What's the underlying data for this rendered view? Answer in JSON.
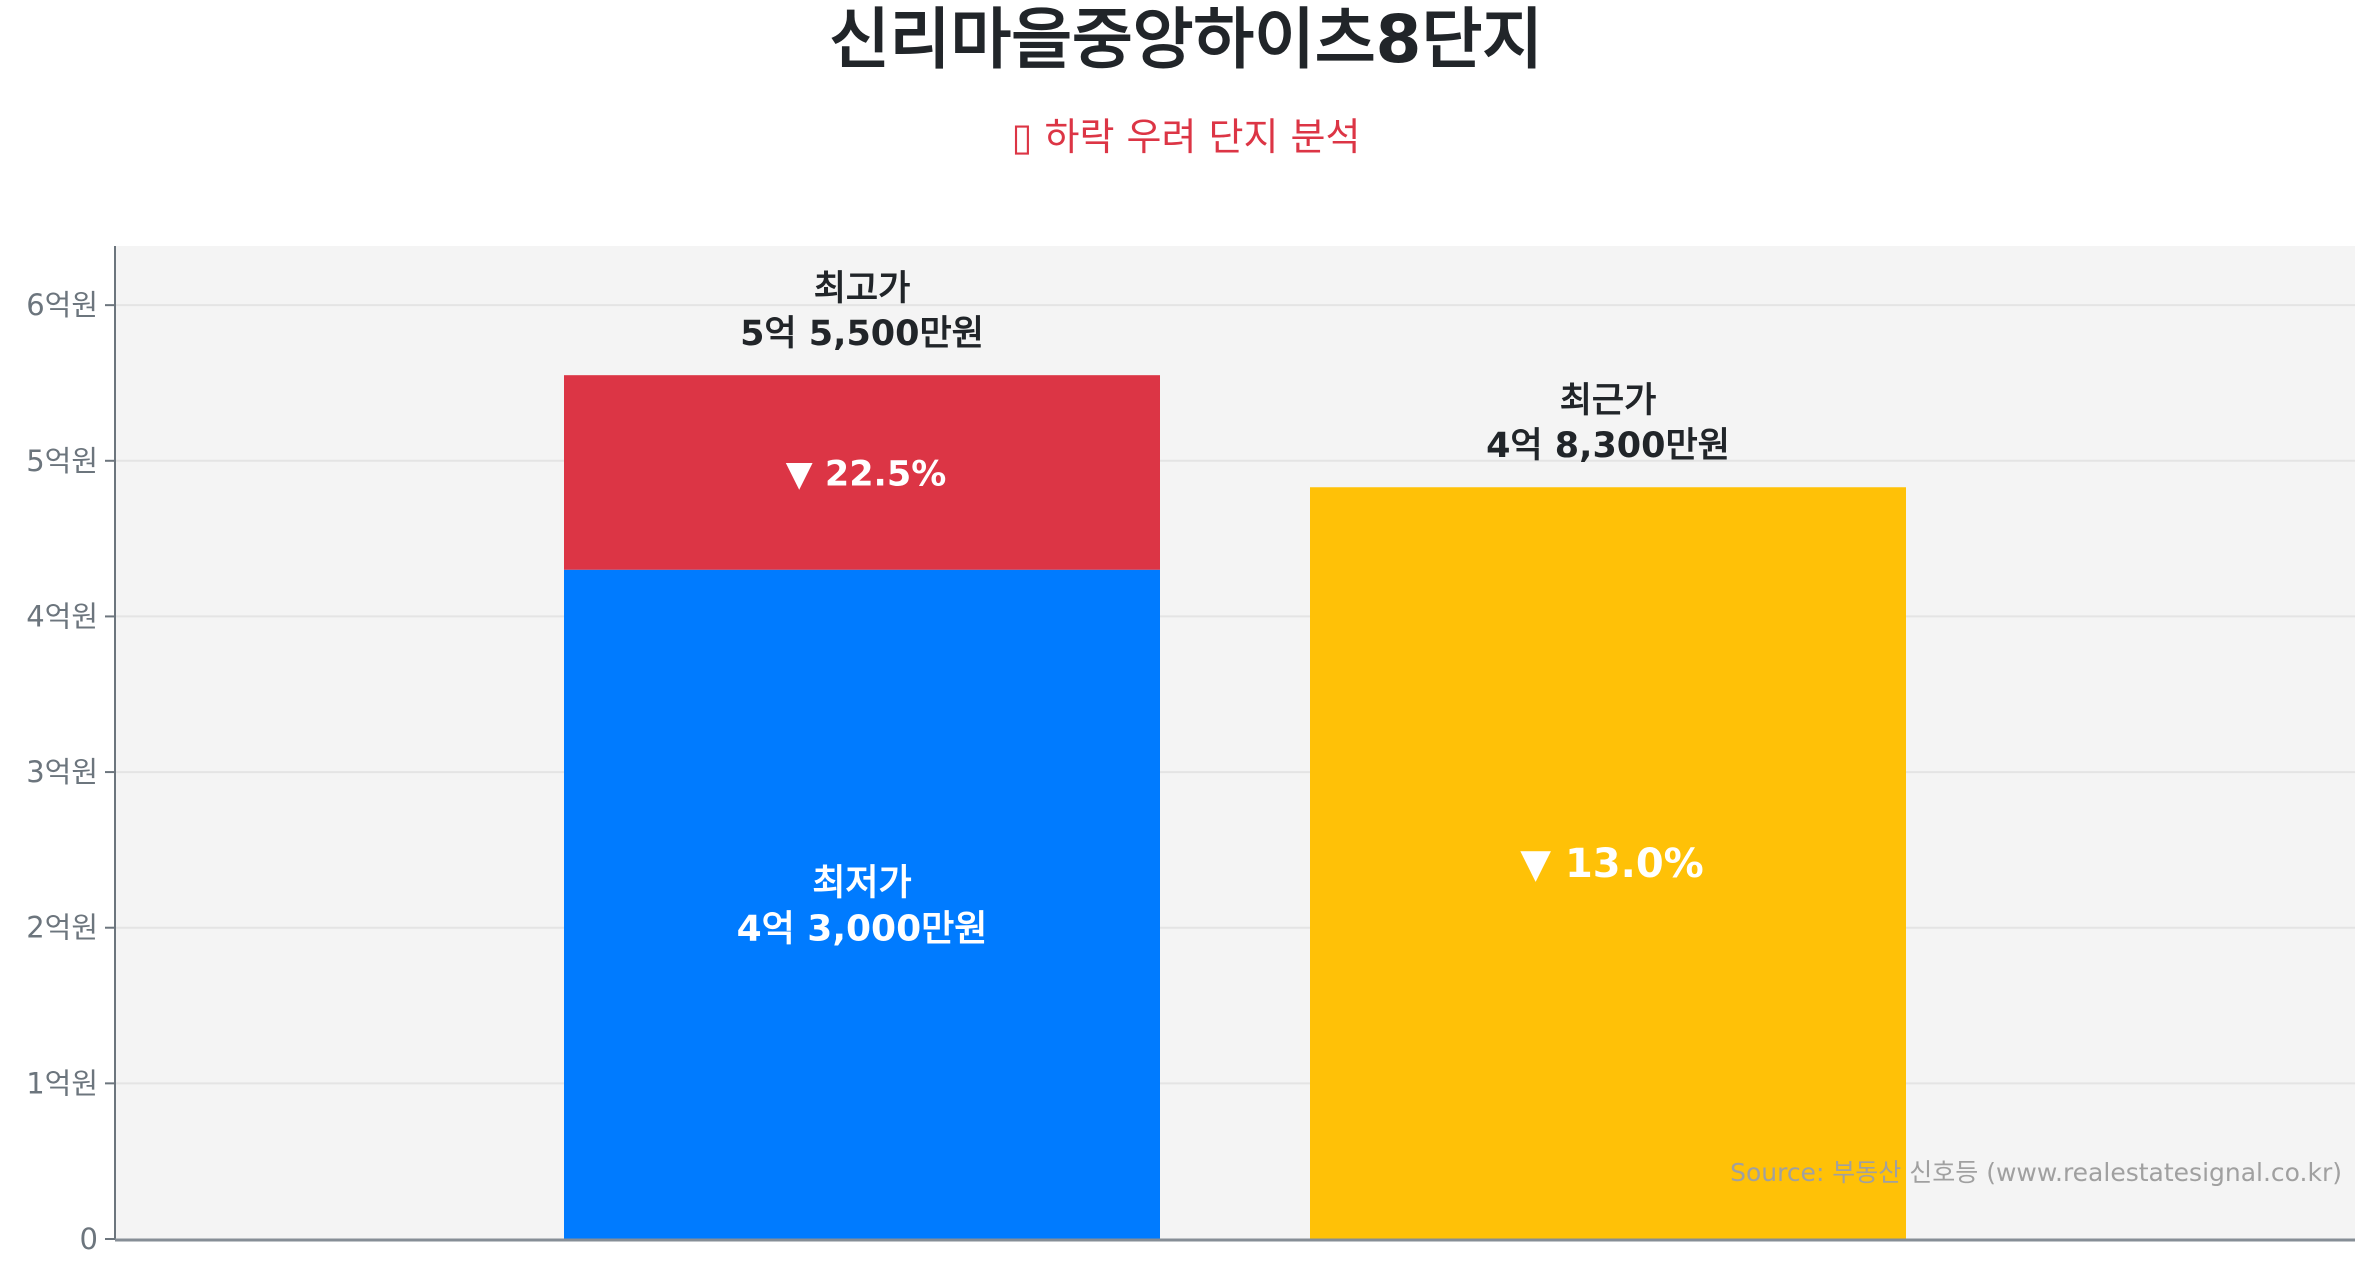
{
  "chart_data": {
    "type": "bar",
    "title": "신리마을중앙하이츠8단지",
    "subtitle": "▯ 하락 우려 단지 분석",
    "unit": "만원",
    "ylim": [
      0,
      63800
    ],
    "yticks": [
      0,
      10000,
      20000,
      30000,
      40000,
      50000,
      60000
    ],
    "ytick_labels": [
      "0",
      "1억원",
      "2억원",
      "3억원",
      "4억원",
      "5억원",
      "6억원"
    ],
    "grid": true,
    "bars": [
      {
        "name": "최저가/최고가",
        "low": {
          "label": "최저가",
          "value": 43000,
          "value_label": "4억 3,000만원",
          "color": "#007bff"
        },
        "high": {
          "label": "최고가",
          "value": 55500,
          "value_label": "5억 5,500만원",
          "color": "#dc3545"
        },
        "change_label": "▼ 22.5%"
      },
      {
        "name": "최근가",
        "label": "최근가",
        "value": 48300,
        "value_label": "4억 8,300만원",
        "color": "#ffc107",
        "change_label": "▼ 13.0%"
      }
    ],
    "source": "Source: 부동산 신호등 (www.realestatesignal.co.kr)"
  }
}
